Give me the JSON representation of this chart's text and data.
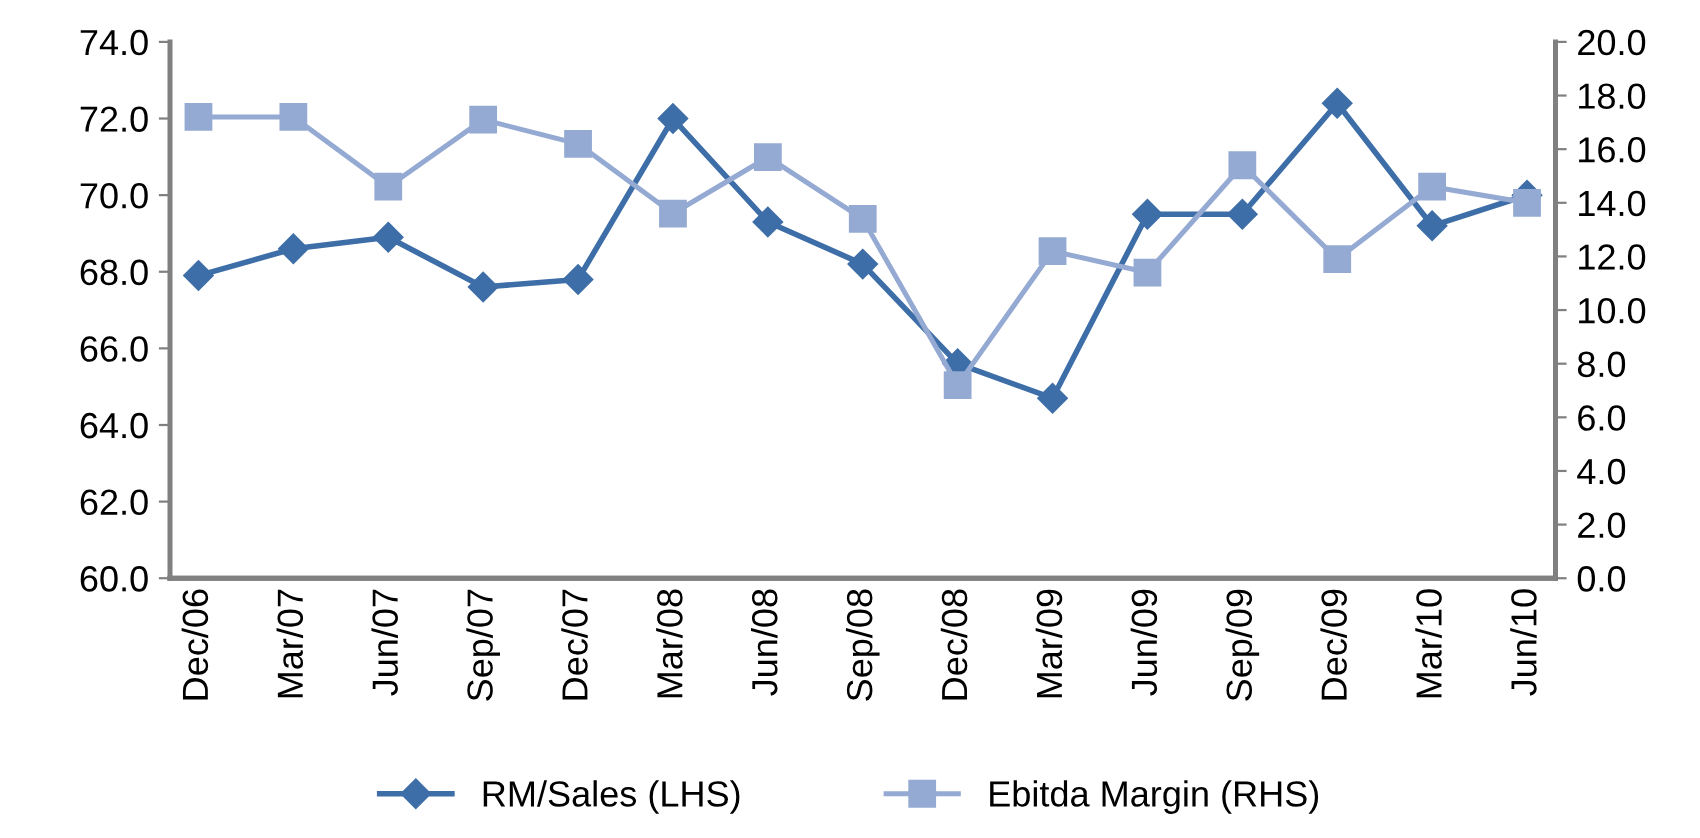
{
  "chart_data": {
    "type": "line",
    "categories": [
      "Dec/06",
      "Mar/07",
      "Jun/07",
      "Sep/07",
      "Dec/07",
      "Mar/08",
      "Jun/08",
      "Sep/08",
      "Dec/08",
      "Mar/09",
      "Jun/09",
      "Sep/09",
      "Dec/09",
      "Mar/10",
      "Jun/10"
    ],
    "series": [
      {
        "name": "RM/Sales (LHS)",
        "color": "#3e6ea8",
        "marker": "diamond",
        "values": [
          67.9,
          68.6,
          68.9,
          67.6,
          67.8,
          72.0,
          69.3,
          68.2,
          65.6,
          64.7,
          69.5,
          69.5,
          72.4,
          69.2,
          70.0
        ]
      },
      {
        "name": "Ebitda Margin (RHS)",
        "color": "#94aad2",
        "marker": "square",
        "axis": "y2",
        "values": [
          17.2,
          17.2,
          14.6,
          17.1,
          16.2,
          13.6,
          15.7,
          13.4,
          7.2,
          12.2,
          11.4,
          15.4,
          11.9,
          14.6,
          14.0
        ]
      }
    ],
    "ylim": [
      60,
      74
    ],
    "yticks": [
      {
        "value": 60,
        "label": "60.0"
      },
      {
        "value": 62,
        "label": "62.0"
      },
      {
        "value": 64,
        "label": "64.0"
      },
      {
        "value": 66,
        "label": "66.0"
      },
      {
        "value": 68,
        "label": "68.0"
      },
      {
        "value": 70,
        "label": "70.0"
      },
      {
        "value": 72,
        "label": "72.0"
      },
      {
        "value": 74,
        "label": "74.0"
      }
    ],
    "y2lim": [
      0,
      20
    ],
    "y2ticks": [
      {
        "value": 0,
        "label": "0.0"
      },
      {
        "value": 2,
        "label": "2.0"
      },
      {
        "value": 4,
        "label": "4.0"
      },
      {
        "value": 6,
        "label": "6.0"
      },
      {
        "value": 8,
        "label": "8.0"
      },
      {
        "value": 10,
        "label": "10.0"
      },
      {
        "value": 12,
        "label": "12.0"
      },
      {
        "value": 14,
        "label": "14.0"
      },
      {
        "value": 16,
        "label": "16.0"
      },
      {
        "value": 18,
        "label": "18.0"
      },
      {
        "value": 20,
        "label": "20.0"
      }
    ],
    "grid": false,
    "legend": "bottom"
  }
}
